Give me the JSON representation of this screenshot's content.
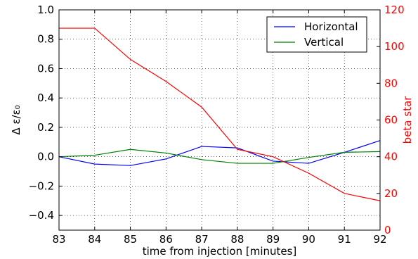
{
  "chart_data": {
    "type": "line",
    "xlabel": "time from injection [minutes]",
    "ylabel_left": "Δ ε/ε₀",
    "ylabel_right": "beta star",
    "xlim": [
      83,
      92
    ],
    "ylim_left": [
      -0.5,
      1.0
    ],
    "ylim_right": [
      0,
      120
    ],
    "x_ticks": [
      83,
      84,
      85,
      86,
      87,
      88,
      89,
      90,
      91,
      92
    ],
    "x_tick_labels": [
      "83",
      "84",
      "85",
      "86",
      "87",
      "88",
      "89",
      "90",
      "91",
      "92"
    ],
    "y_left_ticks": [
      -0.4,
      -0.2,
      0.0,
      0.2,
      0.4,
      0.6,
      0.8,
      1.0
    ],
    "y_left_tick_labels": [
      "−0.4",
      "−0.2",
      "0.0",
      "0.2",
      "0.4",
      "0.6",
      "0.8",
      "1.0"
    ],
    "y_right_ticks": [
      0,
      20,
      40,
      60,
      80,
      100,
      120
    ],
    "y_right_tick_labels": [
      "0",
      "20",
      "40",
      "60",
      "80",
      "100",
      "120"
    ],
    "grid": "dotted",
    "legend_position": "top-right",
    "series": [
      {
        "name": "Horizontal",
        "axis": "left",
        "color": "#0000ff",
        "x": [
          83,
          84,
          85,
          86,
          87,
          88,
          89,
          90,
          91,
          92
        ],
        "y": [
          0.0,
          -0.05,
          -0.06,
          -0.015,
          0.07,
          0.06,
          -0.03,
          -0.045,
          0.03,
          0.11
        ]
      },
      {
        "name": "Vertical",
        "axis": "left",
        "color": "#008000",
        "x": [
          83,
          84,
          85,
          86,
          87,
          88,
          89,
          90,
          91,
          92
        ],
        "y": [
          0.0,
          0.01,
          0.05,
          0.025,
          -0.02,
          -0.045,
          -0.045,
          -0.005,
          0.03,
          0.035
        ]
      },
      {
        "axis": "right",
        "color": "#ff0000",
        "x": [
          83,
          84,
          85,
          86,
          87,
          88,
          89,
          90,
          91,
          92
        ],
        "y": [
          110,
          110,
          93,
          81,
          67,
          44,
          40,
          31,
          20,
          16
        ]
      }
    ],
    "colors": {
      "right_axis": "#ff0000",
      "left_axis": "#000000"
    }
  }
}
